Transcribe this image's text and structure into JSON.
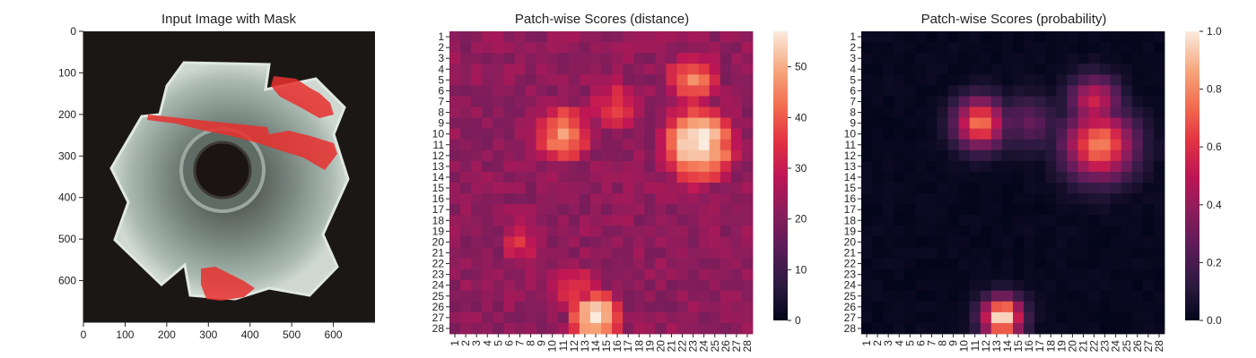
{
  "chart_data": [
    {
      "type": "image",
      "title": "Input Image with Mask",
      "xticks": [
        0,
        100,
        200,
        300,
        400,
        500,
        600
      ],
      "yticks": [
        0,
        100,
        200,
        300,
        400,
        500,
        600
      ],
      "xlim": [
        0,
        700
      ],
      "ylim": [
        700,
        0
      ],
      "mask_color": "#e8302e"
    },
    {
      "type": "heatmap",
      "title": "Patch-wise Scores (distance)",
      "rows": 28,
      "cols": 28,
      "tick_labels": [
        "1",
        "2",
        "3",
        "4",
        "5",
        "6",
        "7",
        "8",
        "9",
        "10",
        "11",
        "12",
        "13",
        "14",
        "15",
        "16",
        "17",
        "18",
        "19",
        "20",
        "21",
        "22",
        "23",
        "24",
        "25",
        "26",
        "27",
        "28"
      ],
      "colorbar": {
        "min": 0,
        "max": 57,
        "ticks": [
          0,
          10,
          20,
          30,
          40,
          50
        ]
      },
      "colormap": "rocket",
      "base": 22,
      "hotspots": [
        {
          "row": 10,
          "col": 11,
          "value": 47,
          "spread": 2.6
        },
        {
          "row": 7.5,
          "col": 16,
          "value": 36,
          "spread": 2.8
        },
        {
          "row": 11,
          "col": 23.5,
          "value": 57,
          "spread": 3.2
        },
        {
          "row": 5,
          "col": 23,
          "value": 45,
          "spread": 2.5
        },
        {
          "row": 27,
          "col": 14,
          "value": 57,
          "spread": 2.2
        },
        {
          "row": 24,
          "col": 12,
          "value": 35,
          "spread": 2.5
        },
        {
          "row": 20,
          "col": 7,
          "value": 33,
          "spread": 2.5
        }
      ]
    },
    {
      "type": "heatmap",
      "title": "Patch-wise Scores (probability)",
      "rows": 28,
      "cols": 28,
      "tick_labels": [
        "1",
        "2",
        "3",
        "4",
        "5",
        "6",
        "7",
        "8",
        "9",
        "10",
        "11",
        "12",
        "13",
        "14",
        "15",
        "16",
        "17",
        "18",
        "19",
        "20",
        "21",
        "22",
        "23",
        "24",
        "25",
        "26",
        "27",
        "28"
      ],
      "colorbar": {
        "min": 0.0,
        "max": 1.0,
        "ticks": [
          "0.0",
          "0.2",
          "0.4",
          "0.6",
          "0.8",
          "1.0"
        ]
      },
      "colormap": "rocket",
      "base": 0.0,
      "hotspots": [
        {
          "row": 9,
          "col": 11.5,
          "value": 0.75,
          "spread": 1.6
        },
        {
          "row": 9,
          "col": 16,
          "value": 0.25,
          "spread": 1.8
        },
        {
          "row": 11,
          "col": 22.5,
          "value": 0.78,
          "spread": 2.2
        },
        {
          "row": 7,
          "col": 22,
          "value": 0.55,
          "spread": 1.6
        },
        {
          "row": 27,
          "col": 13.5,
          "value": 1.0,
          "spread": 1.3
        }
      ]
    }
  ]
}
